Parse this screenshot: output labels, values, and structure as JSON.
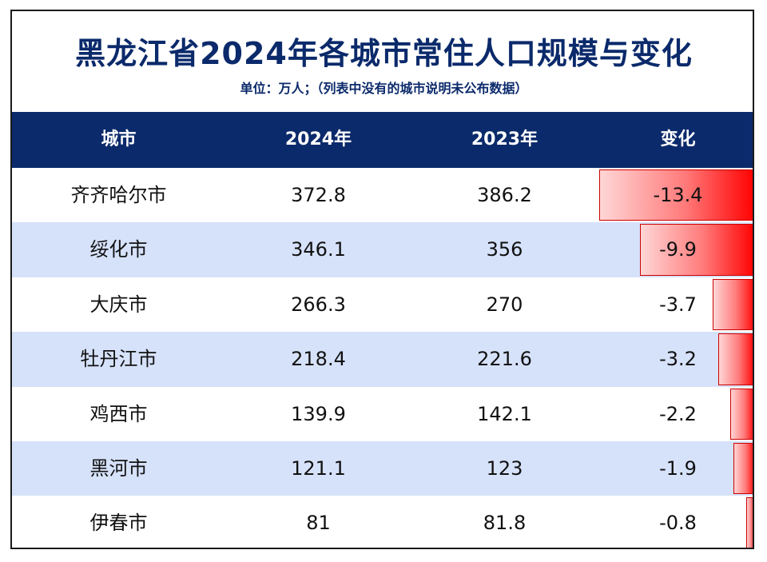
{
  "title": "黑龙江省2024年各城市常住人口规模与变化",
  "subtitle": "单位：万人；（列表中没有的城市说明未公布数据）",
  "header": {
    "city": "城市",
    "y2024": "2024年",
    "y2023": "2023年",
    "change": "变化"
  },
  "colors": {
    "header_bg": "#0b2a6b",
    "alt_row": "#d6e2fa",
    "bar_end": "#ff0000",
    "bar_start": "#ffd6d6"
  },
  "chart_data": {
    "type": "table",
    "columns": [
      "城市",
      "2024年",
      "2023年",
      "变化"
    ],
    "rows": [
      {
        "city": "齐齐哈尔市",
        "y2024": "372.8",
        "y2023": "386.2",
        "change": "-13.4",
        "change_value": -13.4
      },
      {
        "city": "绥化市",
        "y2024": "346.1",
        "y2023": "356",
        "change": "-9.9",
        "change_value": -9.9
      },
      {
        "city": "大庆市",
        "y2024": "266.3",
        "y2023": "270",
        "change": "-3.7",
        "change_value": -3.7
      },
      {
        "city": "牡丹江市",
        "y2024": "218.4",
        "y2023": "221.6",
        "change": "-3.2",
        "change_value": -3.2
      },
      {
        "city": "鸡西市",
        "y2024": "139.9",
        "y2023": "142.1",
        "change": "-2.2",
        "change_value": -2.2
      },
      {
        "city": "黑河市",
        "y2024": "121.1",
        "y2023": "123",
        "change": "-1.9",
        "change_value": -1.9
      },
      {
        "city": "伊春市",
        "y2024": "81",
        "y2023": "81.8",
        "change": "-0.8",
        "change_value": -0.8
      }
    ]
  }
}
